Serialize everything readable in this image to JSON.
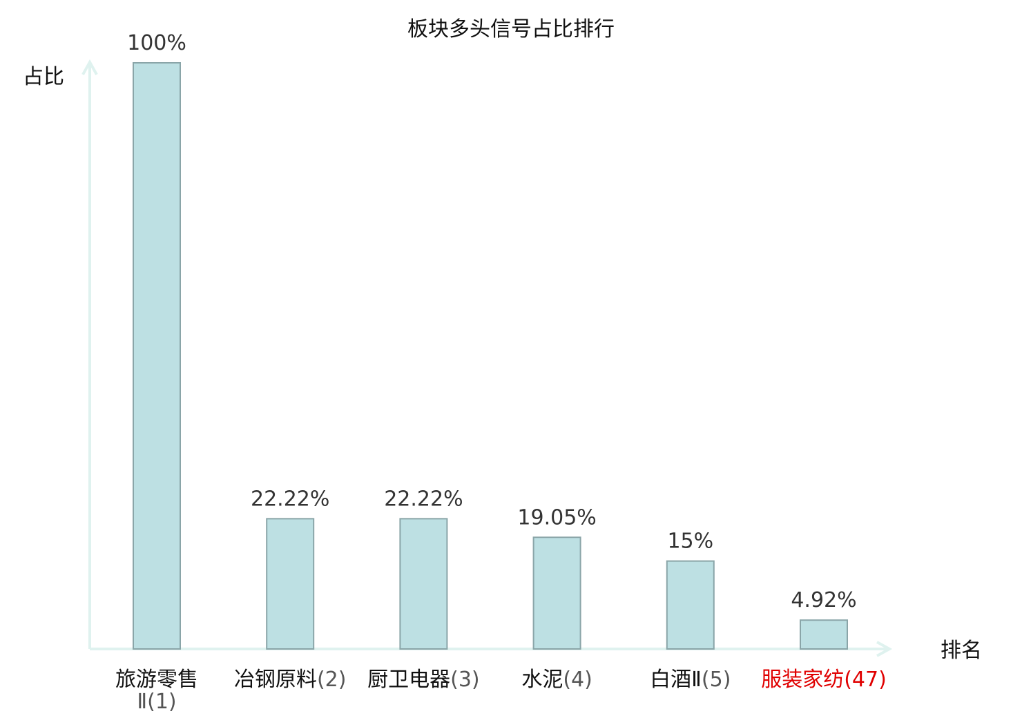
{
  "chart_data": {
    "type": "bar",
    "title": "板块多头信号占比排行",
    "ylabel": "占比",
    "xlabel": "排名",
    "ylim": [
      0,
      100
    ],
    "grid": false,
    "categories": [
      {
        "name": "旅游零售Ⅱ",
        "rank": "(1)",
        "highlight": false
      },
      {
        "name": "冶钢原料",
        "rank": "(2)",
        "highlight": false
      },
      {
        "name": "厨卫电器",
        "rank": "(3)",
        "highlight": false
      },
      {
        "name": "水泥",
        "rank": "(4)",
        "highlight": false
      },
      {
        "name": "白酒Ⅱ",
        "rank": "(5)",
        "highlight": false
      },
      {
        "name": "服装家纺",
        "rank": "(47)",
        "highlight": true
      }
    ],
    "values": [
      100,
      22.22,
      22.22,
      19.05,
      15,
      4.92
    ],
    "value_labels": [
      "100%",
      "22.22%",
      "22.22%",
      "19.05%",
      "15%",
      "4.92%"
    ]
  },
  "colors": {
    "bar_fill": "#bde0e3",
    "bar_stroke": "#8aa5a8",
    "axis": "#dff2ef",
    "highlight": "#e00000"
  }
}
